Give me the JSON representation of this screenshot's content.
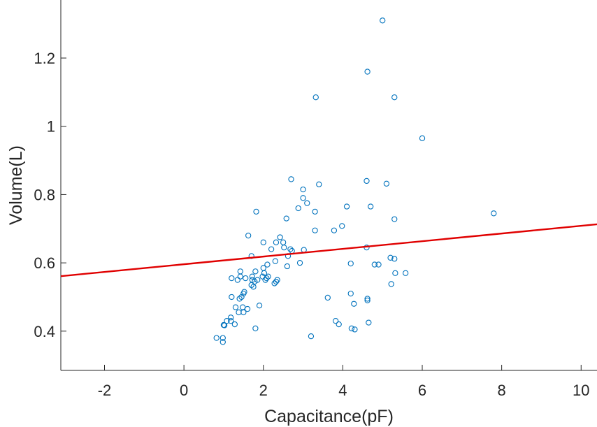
{
  "chart_data": {
    "type": "scatter",
    "title": "",
    "xlabel": "Capacitance(pF)",
    "ylabel": "Volume(L)",
    "xlim": [
      -3.1,
      10.4
    ],
    "ylim": [
      0.285,
      1.37
    ],
    "xticks": [
      -2,
      0,
      2,
      4,
      6,
      8,
      10
    ],
    "yticks": [
      0.4,
      0.6,
      0.8,
      1,
      1.2
    ],
    "xtick_labels": [
      "-2",
      "0",
      "2",
      "4",
      "6",
      "8",
      "10"
    ],
    "ytick_labels": [
      "0.4",
      "0.6",
      "0.8",
      "1",
      "1.2"
    ],
    "grid": false,
    "colors": {
      "points": "#0072BD",
      "fit_line": "#E00000",
      "axis": "#262626"
    },
    "series": [
      {
        "type": "scatter",
        "x": [
          0.82,
          0.98,
          0.98,
          1.0,
          1.02,
          1.08,
          1.18,
          1.18,
          1.2,
          1.2,
          1.28,
          1.3,
          1.35,
          1.38,
          1.4,
          1.42,
          1.42,
          1.45,
          1.48,
          1.5,
          1.5,
          1.52,
          1.55,
          1.6,
          1.62,
          1.7,
          1.7,
          1.72,
          1.72,
          1.75,
          1.78,
          1.8,
          1.8,
          1.82,
          1.85,
          1.9,
          1.98,
          2.0,
          2.0,
          2.02,
          2.05,
          2.08,
          2.1,
          2.12,
          2.2,
          2.28,
          2.3,
          2.32,
          2.32,
          2.35,
          2.42,
          2.5,
          2.52,
          2.58,
          2.6,
          2.62,
          2.68,
          2.7,
          2.72,
          2.88,
          2.92,
          3.0,
          3.0,
          3.02,
          3.1,
          3.2,
          3.3,
          3.3,
          3.32,
          3.4,
          3.62,
          3.78,
          3.82,
          3.9,
          3.98,
          4.1,
          4.2,
          4.2,
          4.22,
          4.28,
          4.3,
          4.6,
          4.6,
          4.62,
          4.62,
          4.62,
          4.65,
          4.7,
          4.8,
          4.9,
          5.0,
          5.1,
          5.2,
          5.22,
          5.3,
          5.3,
          5.3,
          5.32,
          5.58,
          6.0,
          7.8
        ],
        "y": [
          0.38,
          0.368,
          0.38,
          0.418,
          0.417,
          0.43,
          0.43,
          0.44,
          0.555,
          0.5,
          0.42,
          0.47,
          0.55,
          0.455,
          0.495,
          0.56,
          0.575,
          0.5,
          0.47,
          0.455,
          0.51,
          0.515,
          0.555,
          0.465,
          0.68,
          0.535,
          0.62,
          0.55,
          0.56,
          0.53,
          0.545,
          0.575,
          0.408,
          0.75,
          0.55,
          0.475,
          0.56,
          0.585,
          0.66,
          0.57,
          0.55,
          0.555,
          0.595,
          0.56,
          0.64,
          0.54,
          0.605,
          0.545,
          0.66,
          0.55,
          0.675,
          0.66,
          0.645,
          0.73,
          0.59,
          0.62,
          0.64,
          0.845,
          0.635,
          0.76,
          0.6,
          0.79,
          0.815,
          0.638,
          0.775,
          0.385,
          0.75,
          0.695,
          1.085,
          0.83,
          0.498,
          0.695,
          0.43,
          0.42,
          0.708,
          0.765,
          0.598,
          0.51,
          0.408,
          0.48,
          0.405,
          0.645,
          0.84,
          1.16,
          0.495,
          0.49,
          0.425,
          0.765,
          0.595,
          0.595,
          1.31,
          0.832,
          0.615,
          0.538,
          0.612,
          1.085,
          0.728,
          0.57,
          0.57,
          0.965,
          0.745
        ]
      },
      {
        "type": "line",
        "x": [
          -3.1,
          10.4
        ],
        "y": [
          0.561,
          0.713
        ]
      }
    ]
  }
}
